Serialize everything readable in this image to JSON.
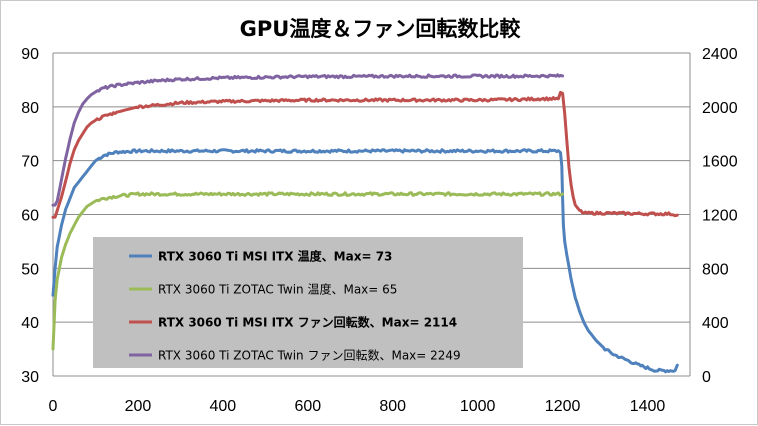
{
  "chart_data": {
    "type": "line",
    "title": "GPU温度＆ファン回転数比較",
    "xlabel": "",
    "ylabel": "",
    "y2label": "",
    "xlim": [
      0,
      1500
    ],
    "ylim": [
      30,
      90
    ],
    "y2lim": [
      0,
      2400
    ],
    "x_ticks": [
      "0",
      "200",
      "400",
      "600",
      "800",
      "1000",
      "1200",
      "1400"
    ],
    "y_ticks": [
      "30",
      "40",
      "50",
      "60",
      "70",
      "80",
      "90"
    ],
    "y2_ticks": [
      "0",
      "400",
      "800",
      "1200",
      "1600",
      "2000",
      "2400"
    ],
    "grid": "horizontal",
    "legend_position": "center-left",
    "series": [
      {
        "name": "RTX 3060 Ti MSI ITX 温度、Max= 73",
        "axis": "left",
        "color": "#4f81bd",
        "bold": true,
        "x": [
          0,
          5,
          10,
          20,
          30,
          40,
          50,
          60,
          70,
          80,
          90,
          100,
          120,
          150,
          200,
          300,
          400,
          500,
          600,
          700,
          800,
          900,
          1000,
          1100,
          1150,
          1190,
          1195,
          1198,
          1200,
          1202,
          1205,
          1210,
          1220,
          1230,
          1240,
          1250,
          1260,
          1280,
          1300,
          1320,
          1350,
          1380,
          1400,
          1420,
          1450,
          1465,
          1470
        ],
        "values": [
          45,
          50,
          54,
          58,
          61,
          63,
          65,
          66,
          67,
          68,
          69,
          70,
          71,
          71.6,
          71.8,
          71.8,
          71.8,
          71.8,
          71.8,
          71.8,
          71.8,
          71.8,
          71.8,
          71.8,
          71.8,
          71.8,
          71.5,
          69,
          63,
          58,
          55,
          52.5,
          48,
          44.5,
          42,
          40,
          38.5,
          36.5,
          35,
          34,
          33,
          32,
          31.5,
          31,
          31,
          31,
          32
        ]
      },
      {
        "name": "RTX 3060 Ti ZOTAC Twin 温度、Max= 65",
        "axis": "left",
        "color": "#9bbb59",
        "bold": false,
        "x": [
          0,
          5,
          10,
          20,
          30,
          40,
          50,
          60,
          70,
          80,
          90,
          100,
          120,
          150,
          200,
          300,
          400,
          500,
          600,
          700,
          800,
          900,
          1000,
          1100,
          1150,
          1190,
          1200
        ],
        "values": [
          35,
          44,
          48,
          52,
          54.5,
          56.5,
          58,
          59.5,
          60.5,
          61.5,
          62,
          62.5,
          63,
          63.4,
          63.8,
          63.8,
          63.8,
          63.8,
          63.8,
          63.8,
          63.8,
          63.8,
          63.8,
          63.8,
          63.8,
          63.8,
          63.8
        ]
      },
      {
        "name": "RTX 3060 Ti MSI ITX ファン回転数、Max= 2114",
        "axis": "right",
        "color": "#c0504d",
        "bold": true,
        "x": [
          0,
          5,
          10,
          15,
          20,
          30,
          40,
          50,
          60,
          70,
          80,
          90,
          100,
          120,
          150,
          200,
          250,
          300,
          400,
          500,
          600,
          700,
          800,
          900,
          1000,
          1100,
          1150,
          1190,
          1195,
          1200,
          1205,
          1210,
          1215,
          1220,
          1225,
          1230,
          1240,
          1250,
          1300,
          1400,
          1450,
          1465,
          1470
        ],
        "values": [
          1180,
          1180,
          1230,
          1280,
          1330,
          1450,
          1580,
          1680,
          1750,
          1800,
          1850,
          1880,
          1900,
          1930,
          1960,
          2000,
          2015,
          2030,
          2040,
          2045,
          2050,
          2050,
          2050,
          2050,
          2050,
          2055,
          2060,
          2060,
          2100,
          2100,
          1950,
          1750,
          1550,
          1420,
          1330,
          1270,
          1230,
          1210,
          1210,
          1205,
          1205,
          1200,
          1195
        ]
      },
      {
        "name": "RTX 3060 Ti ZOTAC Twin ファン回転数、Max= 2249",
        "axis": "right",
        "color": "#8064a2",
        "bold": false,
        "x": [
          0,
          5,
          10,
          15,
          20,
          30,
          40,
          50,
          60,
          70,
          80,
          90,
          100,
          120,
          150,
          200,
          250,
          300,
          400,
          500,
          600,
          700,
          800,
          900,
          1000,
          1100,
          1150,
          1200
        ],
        "values": [
          1270,
          1270,
          1300,
          1380,
          1460,
          1620,
          1760,
          1880,
          1960,
          2020,
          2060,
          2090,
          2110,
          2140,
          2160,
          2180,
          2195,
          2205,
          2215,
          2220,
          2225,
          2225,
          2228,
          2228,
          2228,
          2228,
          2230,
          2230
        ]
      }
    ]
  }
}
